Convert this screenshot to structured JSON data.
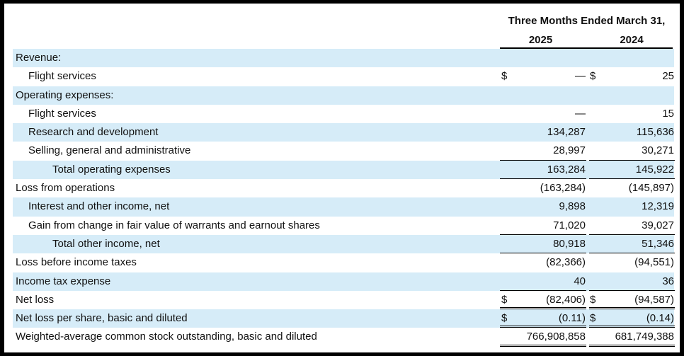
{
  "header": {
    "period": "Three Months Ended March 31,",
    "col1": "2025",
    "col2": "2024"
  },
  "rows": [
    {
      "label": "Revenue:",
      "v1": "",
      "v2": ""
    },
    {
      "label": "Flight services",
      "d1": "$",
      "v1": "—",
      "d2": "$",
      "v2": "25"
    },
    {
      "label": "Operating expenses:",
      "v1": "",
      "v2": ""
    },
    {
      "label": "Flight services",
      "v1": "—",
      "v2": "15"
    },
    {
      "label": "Research and development",
      "v1": "134,287",
      "v2": "115,636"
    },
    {
      "label": "Selling, general and administrative",
      "v1": "28,997",
      "v2": "30,271"
    },
    {
      "label": "Total operating expenses",
      "v1": "163,284",
      "v2": "145,922"
    },
    {
      "label": "Loss from operations",
      "v1": "(163,284)",
      "v2": "(145,897)"
    },
    {
      "label": "Interest and other income, net",
      "v1": "9,898",
      "v2": "12,319"
    },
    {
      "label": "Gain  from change in fair value of warrants and earnout shares",
      "v1": "71,020",
      "v2": "39,027"
    },
    {
      "label": "Total other income, net",
      "v1": "80,918",
      "v2": "51,346"
    },
    {
      "label": "Loss before income taxes",
      "v1": "(82,366)",
      "v2": "(94,551)"
    },
    {
      "label": "Income tax expense",
      "v1": "40",
      "v2": "36"
    },
    {
      "label": "Net loss",
      "d1": "$",
      "v1": "(82,406)",
      "d2": "$",
      "v2": "(94,587)"
    },
    {
      "label": "Net loss per share, basic and diluted",
      "d1": "$",
      "v1": "(0.11)",
      "d2": "$",
      "v2": "(0.14)"
    },
    {
      "label": "Weighted-average common stock outstanding, basic and diluted",
      "v1": "766,908,858",
      "v2": "681,749,388"
    }
  ]
}
